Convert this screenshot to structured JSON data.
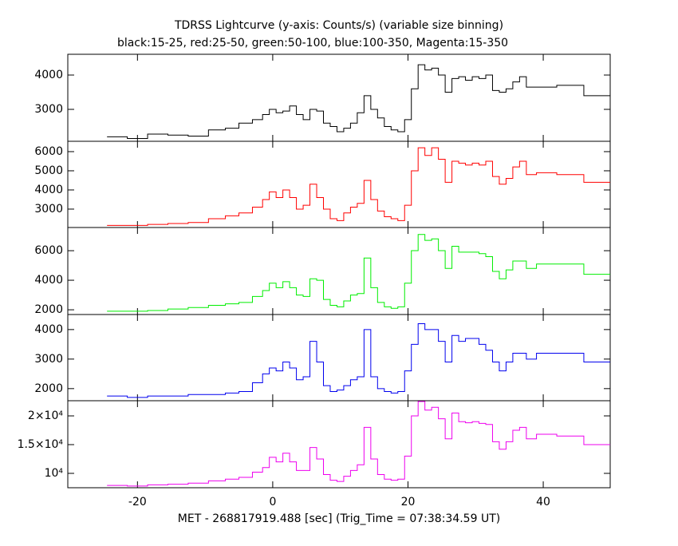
{
  "chart_data": {
    "type": "step",
    "title": "TDRSS Lightcurve (y-axis: Counts/s) (variable size binning)",
    "subtitle": "black:15-25, red:25-50, green:50-100, blue:100-350, Magenta:15-350",
    "x_label": "MET - 268817919.488 [sec] (Trig_Time = 07:38:34.59 UT)",
    "xlim": [
      -30.3,
      49.9
    ],
    "xticks": [
      -20,
      0,
      20,
      40
    ],
    "x": [
      -23,
      -20,
      -17,
      -14,
      -11,
      -8,
      -6,
      -4,
      -2,
      -1,
      0,
      1,
      2,
      3,
      4,
      5,
      6,
      7,
      8,
      9,
      10,
      11,
      12,
      13,
      14,
      15,
      16,
      17,
      18,
      19,
      20,
      21,
      22,
      23,
      24,
      25,
      26,
      27,
      28,
      29,
      30,
      31,
      32,
      33,
      34,
      35,
      36,
      37,
      38,
      40,
      44,
      48
    ],
    "panels": [
      {
        "color": "#000000",
        "ylim": [
          2070,
          4605
        ],
        "yticks": [
          3000,
          4000
        ],
        "values": [
          2200,
          2150,
          2280,
          2250,
          2220,
          2400,
          2450,
          2600,
          2700,
          2850,
          3000,
          2900,
          2950,
          3100,
          2850,
          2700,
          3000,
          2950,
          2600,
          2500,
          2350,
          2450,
          2600,
          2900,
          3400,
          3000,
          2750,
          2500,
          2400,
          2350,
          2700,
          3600,
          4300,
          4150,
          4200,
          4000,
          3500,
          3900,
          3950,
          3850,
          3950,
          3900,
          4000,
          3550,
          3500,
          3600,
          3800,
          3950,
          3650,
          3650,
          3700,
          3400
        ]
      },
      {
        "color": "#ff0000",
        "ylim": [
          2040,
          6540
        ],
        "yticks": [
          3000,
          4000,
          5000,
          6000
        ],
        "values": [
          2150,
          2150,
          2200,
          2250,
          2300,
          2500,
          2650,
          2800,
          3100,
          3500,
          3900,
          3600,
          4000,
          3600,
          3000,
          3200,
          4300,
          3600,
          3000,
          2500,
          2400,
          2800,
          3100,
          3300,
          4500,
          3500,
          2900,
          2600,
          2500,
          2400,
          3200,
          5000,
          6200,
          5800,
          6200,
          5600,
          4400,
          5500,
          5400,
          5300,
          5400,
          5300,
          5500,
          4700,
          4300,
          4600,
          5200,
          5500,
          4800,
          4900,
          4800,
          4400
        ]
      },
      {
        "color": "#00ee00",
        "ylim": [
          1680,
          7570
        ],
        "yticks": [
          2000,
          4000,
          6000
        ],
        "values": [
          1900,
          1900,
          1950,
          2050,
          2150,
          2300,
          2400,
          2500,
          2900,
          3300,
          3800,
          3500,
          3900,
          3500,
          3000,
          2900,
          4100,
          4000,
          2700,
          2300,
          2200,
          2600,
          3000,
          3100,
          5500,
          3500,
          2500,
          2200,
          2100,
          2200,
          3800,
          6000,
          7100,
          6700,
          6800,
          6000,
          4800,
          6300,
          5900,
          5900,
          5900,
          5800,
          5600,
          4600,
          4100,
          4700,
          5300,
          5300,
          4800,
          5100,
          5100,
          4400
        ]
      },
      {
        "color": "#0000ee",
        "ylim": [
          1590,
          4510
        ],
        "yticks": [
          2000,
          3000,
          4000
        ],
        "values": [
          1750,
          1700,
          1750,
          1750,
          1800,
          1800,
          1850,
          1900,
          2200,
          2500,
          2700,
          2600,
          2900,
          2700,
          2300,
          2400,
          3600,
          2900,
          2100,
          1900,
          1950,
          2100,
          2300,
          2400,
          4000,
          2400,
          2000,
          1900,
          1850,
          1900,
          2600,
          3500,
          4200,
          4000,
          4000,
          3600,
          2900,
          3800,
          3600,
          3700,
          3700,
          3500,
          3300,
          2900,
          2600,
          2900,
          3200,
          3200,
          3000,
          3200,
          3200,
          2900
        ]
      },
      {
        "color": "#ee00ee",
        "ylim": [
          7500,
          22640
        ],
        "yticks": [
          {
            "value": 10000,
            "label": "10⁴"
          },
          {
            "value": 15000,
            "label": "1.5×10⁴"
          },
          {
            "value": 20000,
            "label": "2×10⁴"
          }
        ],
        "values": [
          7900,
          7800,
          8000,
          8100,
          8300,
          8700,
          9000,
          9300,
          10200,
          11000,
          12800,
          12000,
          13500,
          12000,
          10500,
          10500,
          14500,
          12500,
          9800,
          8800,
          8600,
          9500,
          10500,
          11500,
          18000,
          12500,
          9800,
          9000,
          8800,
          9000,
          13000,
          20000,
          22500,
          21000,
          21500,
          19500,
          16000,
          20500,
          19000,
          18800,
          19000,
          18700,
          18500,
          15500,
          14200,
          15500,
          17500,
          18000,
          16000,
          16800,
          16500,
          15000
        ]
      }
    ]
  }
}
